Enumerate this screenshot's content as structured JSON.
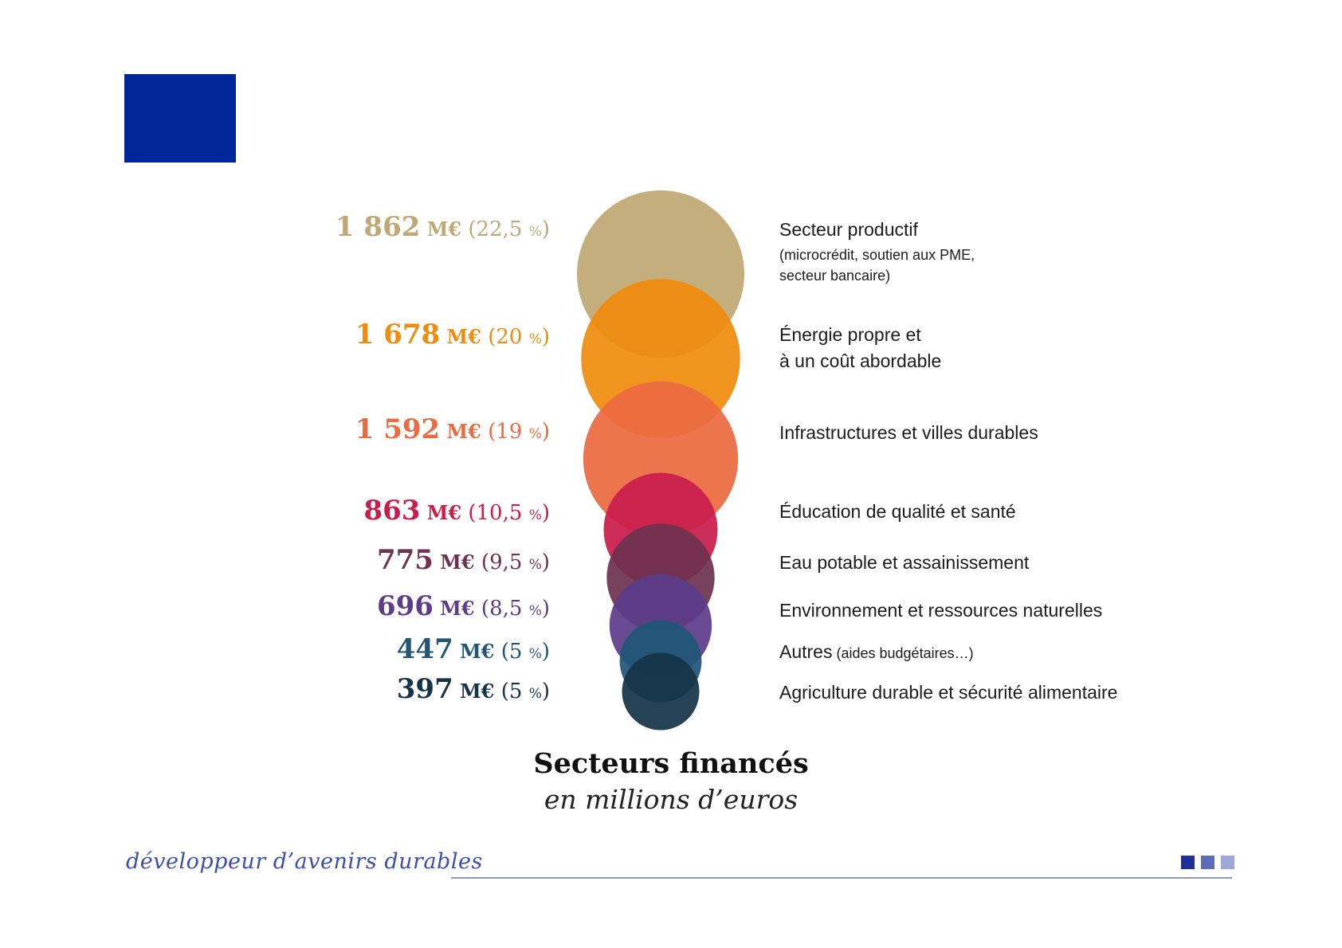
{
  "colors": {
    "logo_square": "#00269a",
    "footer_squares": [
      "#1e2f96",
      "#5b6cb8",
      "#9ea8d8"
    ]
  },
  "chart_data": {
    "type": "bubble",
    "title": "Secteurs financés",
    "subtitle": "en millions d’euros",
    "unit": "M€",
    "points": [
      {
        "value_text": "1 862",
        "value": 1862,
        "pct_text": "22,5",
        "pct": 22.5,
        "label": "Secteur productif",
        "sublabel_lines": [
          "(microcrédit, soutien aux PME,",
          "secteur bancaire)"
        ],
        "color": "#c0a874"
      },
      {
        "value_text": "1 678",
        "value": 1678,
        "pct_text": "20",
        "pct": 20,
        "label_lines": [
          "Énergie propre et",
          "à un coût abordable"
        ],
        "color": "#ef8c0e"
      },
      {
        "value_text": "1 592",
        "value": 1592,
        "pct_text": "19",
        "pct": 19,
        "label": "Infrastructures et villes durables",
        "color": "#ec6a3f"
      },
      {
        "value_text": "863",
        "value": 863,
        "pct_text": "10,5",
        "pct": 10.5,
        "label": "Éducation de qualité et santé",
        "color": "#c91e4c"
      },
      {
        "value_text": "775",
        "value": 775,
        "pct_text": "9,5",
        "pct": 9.5,
        "label": "Eau potable et assainissement",
        "color": "#6e3350"
      },
      {
        "value_text": "696",
        "value": 696,
        "pct_text": "8,5",
        "pct": 8.5,
        "label": "Environnement et ressources naturelles",
        "color": "#5d3d8a"
      },
      {
        "value_text": "447",
        "value": 447,
        "pct_text": "5",
        "pct": 5,
        "label": "Autres",
        "sublabel": "(aides budgétaires…)",
        "color": "#215678"
      },
      {
        "value_text": "397",
        "value": 397,
        "pct_text": "5",
        "pct": 5,
        "label": "Agriculture durable et sécurité alimentaire",
        "color": "#163448"
      }
    ]
  },
  "footer": {
    "slogan": "développeur d’avenirs durables"
  }
}
